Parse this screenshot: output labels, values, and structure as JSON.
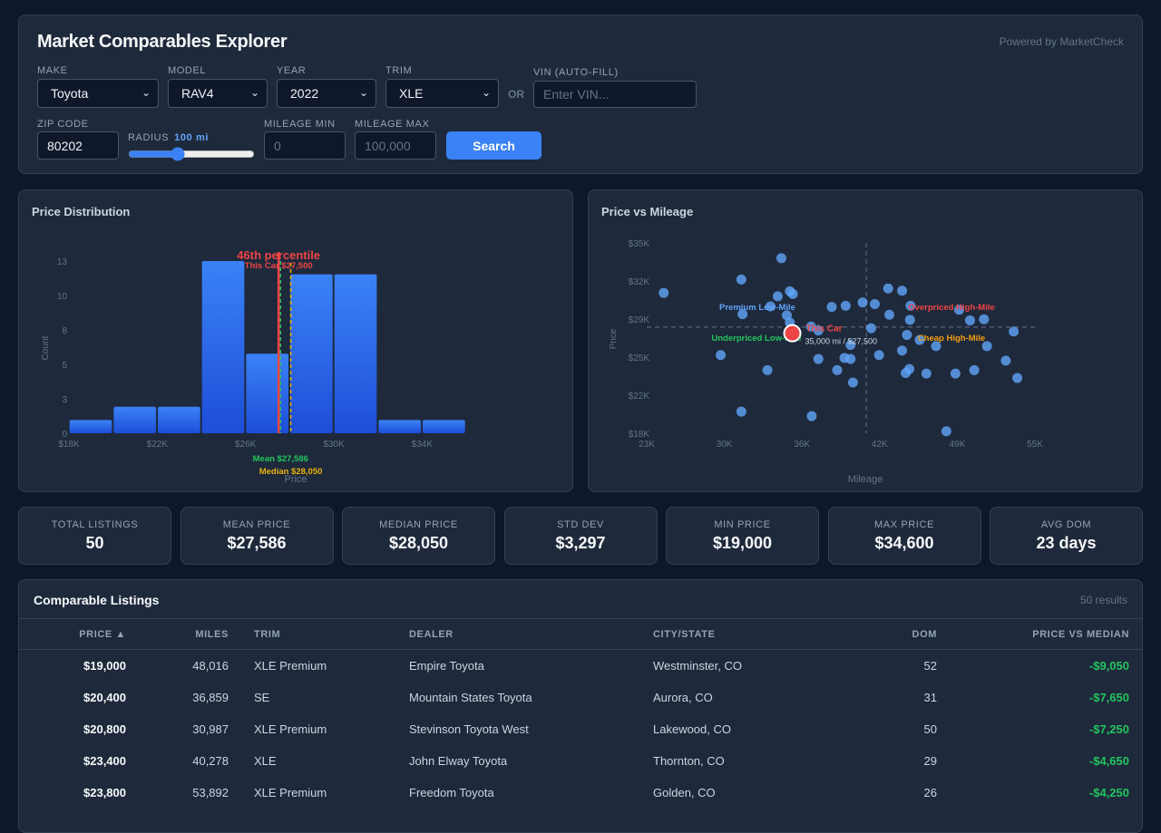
{
  "header": {
    "title": "Market Comparables Explorer",
    "powered_by": "Powered by MarketCheck"
  },
  "filters": {
    "make": {
      "label": "MAKE",
      "value": "Toyota"
    },
    "model": {
      "label": "MODEL",
      "value": "RAV4"
    },
    "year": {
      "label": "YEAR",
      "value": "2022"
    },
    "trim": {
      "label": "TRIM",
      "value": "XLE"
    },
    "or_label": "OR",
    "vin": {
      "label": "VIN (AUTO-FILL)",
      "placeholder": "Enter VIN..."
    },
    "zip": {
      "label": "ZIP CODE",
      "value": "80202"
    },
    "radius": {
      "label": "RADIUS",
      "value_text": "100 mi",
      "value": 100,
      "min": 10,
      "max": 250
    },
    "mileage_min": {
      "label": "MILEAGE MIN",
      "placeholder": "0"
    },
    "mileage_max": {
      "label": "MILEAGE MAX",
      "placeholder": "100,000"
    },
    "search_label": "Search"
  },
  "colors": {
    "accent": "#3b82f6",
    "this_car": "#ef4444",
    "mean": "#22c55e",
    "median": "#eab308",
    "negative_diff": "#22c55e"
  },
  "chart_data": [
    {
      "type": "bar",
      "title": "Price Distribution",
      "xlabel": "Price",
      "ylabel": "Count",
      "bin_edges": [
        18000,
        20000,
        22000,
        24000,
        26000,
        28000,
        30000,
        32000,
        34000,
        36000
      ],
      "values": [
        1,
        2,
        2,
        13,
        6,
        12,
        12,
        1,
        1
      ],
      "xlim": [
        18000,
        36000
      ],
      "ylim": [
        0,
        13
      ],
      "x_ticks": [
        {
          "v": 18000,
          "label": "$18K"
        },
        {
          "v": 22000,
          "label": "$22K"
        },
        {
          "v": 26000,
          "label": "$26K"
        },
        {
          "v": 30000,
          "label": "$30K"
        },
        {
          "v": 34000,
          "label": "$34K"
        }
      ],
      "y_ticks": [
        {
          "v": 0,
          "label": "0"
        },
        {
          "v": 2.6,
          "label": "3"
        },
        {
          "v": 5.2,
          "label": "5"
        },
        {
          "v": 7.8,
          "label": "8"
        },
        {
          "v": 10.4,
          "label": "10"
        },
        {
          "v": 13,
          "label": "13"
        }
      ],
      "this_car": {
        "value": 27500,
        "label": "This Car $27,500",
        "percentile_label": "46th percentile"
      },
      "mean": {
        "value": 27586,
        "label": "Mean $27,586"
      },
      "median": {
        "value": 28050,
        "label": "Median $28,050"
      }
    },
    {
      "type": "scatter",
      "title": "Price vs Mileage",
      "xlabel": "Mileage",
      "ylabel": "Price",
      "xlim": [
        23000,
        55000
      ],
      "ylim": [
        18000,
        35000
      ],
      "x_ticks": [
        "23K",
        "30K",
        "36K",
        "42K",
        "49K",
        "55K"
      ],
      "y_ticks": [
        "$18K",
        "$22K",
        "$25K",
        "$29K",
        "$32K",
        "$35K"
      ],
      "median_mileage": 41100,
      "median_price": 28050,
      "points": [
        [
          24400,
          31100
        ],
        [
          30800,
          32300
        ],
        [
          34100,
          34200
        ],
        [
          33800,
          30800
        ],
        [
          34800,
          31250
        ],
        [
          35050,
          31000
        ],
        [
          33200,
          29900
        ],
        [
          30900,
          29200
        ],
        [
          34550,
          29100
        ],
        [
          34800,
          28450
        ],
        [
          29100,
          25550
        ],
        [
          32950,
          24200
        ],
        [
          30800,
          20500
        ],
        [
          36600,
          20100
        ],
        [
          36550,
          28100
        ],
        [
          37150,
          27750
        ],
        [
          37150,
          25200
        ],
        [
          38250,
          29850
        ],
        [
          39400,
          29950
        ],
        [
          39800,
          26450
        ],
        [
          39300,
          25300
        ],
        [
          39800,
          25200
        ],
        [
          38700,
          24200
        ],
        [
          40000,
          23100
        ],
        [
          40800,
          30250
        ],
        [
          41800,
          30100
        ],
        [
          41500,
          27950
        ],
        [
          42150,
          25550
        ],
        [
          42900,
          31500
        ],
        [
          43000,
          29150
        ],
        [
          44050,
          31300
        ],
        [
          44750,
          29950
        ],
        [
          44700,
          28700
        ],
        [
          44450,
          27350
        ],
        [
          44050,
          25950
        ],
        [
          44650,
          24300
        ],
        [
          44350,
          23950
        ],
        [
          45500,
          26900
        ],
        [
          46050,
          23900
        ],
        [
          46850,
          26350
        ],
        [
          47700,
          18750
        ],
        [
          48450,
          23900
        ],
        [
          48750,
          29600
        ],
        [
          49650,
          28650
        ],
        [
          50000,
          24200
        ],
        [
          50800,
          28750
        ],
        [
          51050,
          26350
        ],
        [
          52600,
          25050
        ],
        [
          53250,
          27650
        ],
        [
          53550,
          23500
        ]
      ],
      "this_car": {
        "mileage": 35000,
        "price": 27500,
        "label": "This Car",
        "detail": "35,000 mi / $27,500"
      },
      "quadrants": {
        "top_left": "Premium Low-Mile",
        "top_right": "Overpriced High-Mile",
        "bottom_left": "Underpriced Low-Mile",
        "bottom_right": "Cheap High-Mile"
      }
    }
  ],
  "stats": [
    {
      "label": "TOTAL LISTINGS",
      "value": "50"
    },
    {
      "label": "MEAN PRICE",
      "value": "$27,586"
    },
    {
      "label": "MEDIAN PRICE",
      "value": "$28,050"
    },
    {
      "label": "STD DEV",
      "value": "$3,297"
    },
    {
      "label": "MIN PRICE",
      "value": "$19,000"
    },
    {
      "label": "MAX PRICE",
      "value": "$34,600"
    },
    {
      "label": "AVG DOM",
      "value": "23 days"
    }
  ],
  "listings": {
    "title": "Comparable Listings",
    "count": "50 results",
    "columns": [
      "PRICE ▲",
      "MILES",
      "TRIM",
      "DEALER",
      "CITY/STATE",
      "DOM",
      "PRICE VS MEDIAN"
    ],
    "rows": [
      [
        "$19,000",
        "48,016",
        "XLE Premium",
        "Empire Toyota",
        "Westminster, CO",
        "52",
        "-$9,050"
      ],
      [
        "$20,400",
        "36,859",
        "SE",
        "Mountain States Toyota",
        "Aurora, CO",
        "31",
        "-$7,650"
      ],
      [
        "$20,800",
        "30,987",
        "XLE Premium",
        "Stevinson Toyota West",
        "Lakewood, CO",
        "50",
        "-$7,250"
      ],
      [
        "$23,400",
        "40,278",
        "XLE",
        "John Elway Toyota",
        "Thornton, CO",
        "29",
        "-$4,650"
      ],
      [
        "$23,800",
        "53,892",
        "XLE Premium",
        "Freedom Toyota",
        "Golden, CO",
        "26",
        "-$4,250"
      ]
    ]
  }
}
